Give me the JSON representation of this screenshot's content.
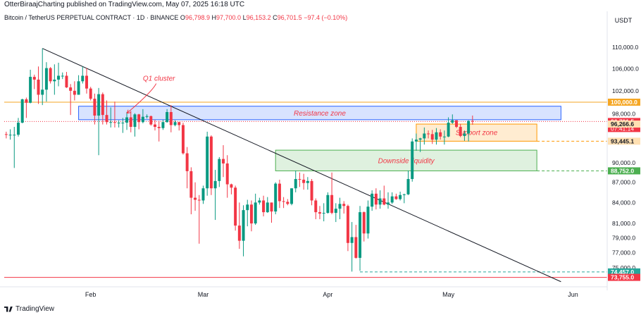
{
  "header": {
    "publisher": "OtterBiraajCharting published on TradingView.com, May 07, 2025 16:18 UTC",
    "symbol": "Bitcoin / TetherUS PERPETUAL CONTRACT · 1D · BINANCE",
    "ohlc": {
      "o_label": "O",
      "o": "96,798.9",
      "h_label": "H",
      "h": "97,700.0",
      "l_label": "L",
      "l": "96,153.2",
      "c_label": "C",
      "c": "96,701.5",
      "change": "−97.4 (−0.10%)"
    }
  },
  "footer": {
    "brand": "TradingView"
  },
  "colors": {
    "up": "#089981",
    "down": "#f23645",
    "resistance_line": "#f5a623",
    "trend_line": "#131722",
    "support_line": "#f23645",
    "green_zone": "#4caf50",
    "blue_zone": "#2962ff",
    "orange_zone": "#ff9800"
  },
  "chart_data": {
    "type": "candlestick",
    "currency_label": "USDT",
    "y_scale": "log",
    "ylim": [
      73000,
      114000
    ],
    "x_start": "2025-01-11",
    "x_end": "2025-06-09",
    "x_ticks": [
      {
        "date": "2025-02-01",
        "label": "Feb"
      },
      {
        "date": "2025-03-01",
        "label": "Mar"
      },
      {
        "date": "2025-04-01",
        "label": "Apr"
      },
      {
        "date": "2025-05-01",
        "label": "May"
      },
      {
        "date": "2025-06-01",
        "label": "Jun"
      }
    ],
    "y_ticks": [
      {
        "value": 110000,
        "label": "110,000.0"
      },
      {
        "value": 106000,
        "label": "106,000.0"
      },
      {
        "value": 102000,
        "label": "102,000.0"
      },
      {
        "value": 98000,
        "label": "98,000.0"
      },
      {
        "value": 90000,
        "label": "90,000.0"
      },
      {
        "value": 87000,
        "label": "87,000.0"
      },
      {
        "value": 84000,
        "label": "84,000.0"
      },
      {
        "value": 81000,
        "label": "81,000.0"
      },
      {
        "value": 79000,
        "label": "79,000.0"
      },
      {
        "value": 77000,
        "label": "77,000.0"
      },
      {
        "value": 75000,
        "label": "75,000.0"
      }
    ],
    "price_badges": [
      {
        "value": 100000,
        "label": "100,000.0",
        "color": "#f5a623"
      },
      {
        "value": 96701.5,
        "label": "96,701.5",
        "countdown": "07:41:14",
        "color": "#f23645"
      },
      {
        "value": 96266.6,
        "label": "96,266.6",
        "color": "#ffe0b2",
        "text_color": "#131722"
      },
      {
        "value": 93445.1,
        "label": "93,445.1",
        "color": "#ffe0b2",
        "text_color": "#131722"
      },
      {
        "value": 88752.0,
        "label": "88,752.0",
        "color": "#4caf50"
      },
      {
        "value": 74457.0,
        "label": "74,457.0",
        "color": "#26a69a"
      },
      {
        "value": 73755.0,
        "label": "73,755.0",
        "color": "#f23645"
      }
    ],
    "horizontal_lines": [
      {
        "value": 100000,
        "color": "#f5a623",
        "style": "solid"
      },
      {
        "value": 73755,
        "color": "#f23645",
        "style": "solid"
      }
    ],
    "zones": [
      {
        "label": "Resistance zone",
        "start": "2025-01-29",
        "end": "2025-05-29",
        "low": 97000,
        "high": 99300,
        "color": "#2962ff"
      },
      {
        "label": "Support zone",
        "start": "2025-04-23",
        "end": "2025-05-23",
        "low": 93445.1,
        "high": 96266.6,
        "color": "#ff9800"
      },
      {
        "label": "Downside liquidity",
        "start": "2025-03-19",
        "end": "2025-05-23",
        "low": 88752,
        "high": 92000,
        "color": "#4caf50"
      }
    ],
    "trendline": {
      "start": {
        "date": "2025-01-20",
        "value": 109800
      },
      "end": {
        "date": "2025-05-29",
        "value": 73200
      }
    },
    "annotations": [
      {
        "text": "Q1 cluster",
        "date": "2025-02-18",
        "value": 103800,
        "arrow_to": {
          "date": "2025-02-10",
          "value": 98100
        }
      }
    ],
    "candles": [
      {
        "d": "2025-01-11",
        "o": 94600,
        "h": 95000,
        "l": 93900,
        "c": 94500
      },
      {
        "d": "2025-01-12",
        "o": 94500,
        "h": 95400,
        "l": 93700,
        "c": 94500
      },
      {
        "d": "2025-01-13",
        "o": 94500,
        "h": 95800,
        "l": 89200,
        "c": 94500
      },
      {
        "d": "2025-01-14",
        "o": 94500,
        "h": 97300,
        "l": 94200,
        "c": 96500
      },
      {
        "d": "2025-01-15",
        "o": 96500,
        "h": 100600,
        "l": 96400,
        "c": 100500
      },
      {
        "d": "2025-01-16",
        "o": 100500,
        "h": 100800,
        "l": 97300,
        "c": 99900
      },
      {
        "d": "2025-01-17",
        "o": 99900,
        "h": 105800,
        "l": 99800,
        "c": 104500
      },
      {
        "d": "2025-01-18",
        "o": 104500,
        "h": 104900,
        "l": 102300,
        "c": 104000
      },
      {
        "d": "2025-01-19",
        "o": 104000,
        "h": 106400,
        "l": 99700,
        "c": 101300
      },
      {
        "d": "2025-01-20",
        "o": 101300,
        "h": 109800,
        "l": 99500,
        "c": 102200
      },
      {
        "d": "2025-01-21",
        "o": 102200,
        "h": 107200,
        "l": 100100,
        "c": 106100
      },
      {
        "d": "2025-01-22",
        "o": 106100,
        "h": 106300,
        "l": 103300,
        "c": 103700
      },
      {
        "d": "2025-01-23",
        "o": 103700,
        "h": 106800,
        "l": 101300,
        "c": 104000
      },
      {
        "d": "2025-01-24",
        "o": 104000,
        "h": 107100,
        "l": 102800,
        "c": 104700
      },
      {
        "d": "2025-01-25",
        "o": 104700,
        "h": 105300,
        "l": 104100,
        "c": 104700
      },
      {
        "d": "2025-01-26",
        "o": 104700,
        "h": 105400,
        "l": 102500,
        "c": 102600
      },
      {
        "d": "2025-01-27",
        "o": 102600,
        "h": 103200,
        "l": 97800,
        "c": 102000
      },
      {
        "d": "2025-01-28",
        "o": 102000,
        "h": 103700,
        "l": 100300,
        "c": 101300
      },
      {
        "d": "2025-01-29",
        "o": 101300,
        "h": 104800,
        "l": 101300,
        "c": 103700
      },
      {
        "d": "2025-01-30",
        "o": 103700,
        "h": 106400,
        "l": 103300,
        "c": 104700
      },
      {
        "d": "2025-01-31",
        "o": 104700,
        "h": 106100,
        "l": 101500,
        "c": 102400
      },
      {
        "d": "2025-02-01",
        "o": 102400,
        "h": 102700,
        "l": 100300,
        "c": 100600
      },
      {
        "d": "2025-02-02",
        "o": 100600,
        "h": 101500,
        "l": 96200,
        "c": 97700
      },
      {
        "d": "2025-02-03",
        "o": 97700,
        "h": 102500,
        "l": 91200,
        "c": 101400
      },
      {
        "d": "2025-02-04",
        "o": 101400,
        "h": 101700,
        "l": 96200,
        "c": 97800
      },
      {
        "d": "2025-02-05",
        "o": 97800,
        "h": 100300,
        "l": 96200,
        "c": 96600
      },
      {
        "d": "2025-02-06",
        "o": 96600,
        "h": 99100,
        "l": 95700,
        "c": 96600
      },
      {
        "d": "2025-02-07",
        "o": 96600,
        "h": 100100,
        "l": 95700,
        "c": 96500
      },
      {
        "d": "2025-02-08",
        "o": 96500,
        "h": 96900,
        "l": 95700,
        "c": 96500
      },
      {
        "d": "2025-02-09",
        "o": 96500,
        "h": 97300,
        "l": 94800,
        "c": 96500
      },
      {
        "d": "2025-02-10",
        "o": 96500,
        "h": 98300,
        "l": 95300,
        "c": 97400
      },
      {
        "d": "2025-02-11",
        "o": 97400,
        "h": 98500,
        "l": 94900,
        "c": 95800
      },
      {
        "d": "2025-02-12",
        "o": 95800,
        "h": 98100,
        "l": 94200,
        "c": 97900
      },
      {
        "d": "2025-02-13",
        "o": 97900,
        "h": 98000,
        "l": 95400,
        "c": 96600
      },
      {
        "d": "2025-02-14",
        "o": 96600,
        "h": 98800,
        "l": 96400,
        "c": 97500
      },
      {
        "d": "2025-02-15",
        "o": 97500,
        "h": 97900,
        "l": 97200,
        "c": 97600
      },
      {
        "d": "2025-02-16",
        "o": 97600,
        "h": 97700,
        "l": 96000,
        "c": 96200
      },
      {
        "d": "2025-02-17",
        "o": 96200,
        "h": 97000,
        "l": 95200,
        "c": 95800
      },
      {
        "d": "2025-02-18",
        "o": 95800,
        "h": 96800,
        "l": 93400,
        "c": 95600
      },
      {
        "d": "2025-02-19",
        "o": 95600,
        "h": 97000,
        "l": 95300,
        "c": 96600
      },
      {
        "d": "2025-02-20",
        "o": 96600,
        "h": 98800,
        "l": 96500,
        "c": 98300
      },
      {
        "d": "2025-02-21",
        "o": 98300,
        "h": 99500,
        "l": 94900,
        "c": 96100
      },
      {
        "d": "2025-02-22",
        "o": 96100,
        "h": 96900,
        "l": 95900,
        "c": 96600
      },
      {
        "d": "2025-02-23",
        "o": 96600,
        "h": 96600,
        "l": 95200,
        "c": 96100
      },
      {
        "d": "2025-02-24",
        "o": 96100,
        "h": 96500,
        "l": 91300,
        "c": 91500
      },
      {
        "d": "2025-02-25",
        "o": 91500,
        "h": 92500,
        "l": 86100,
        "c": 88700
      },
      {
        "d": "2025-02-26",
        "o": 88700,
        "h": 89300,
        "l": 82300,
        "c": 84700
      },
      {
        "d": "2025-02-27",
        "o": 84700,
        "h": 87000,
        "l": 82800,
        "c": 84400
      },
      {
        "d": "2025-02-28",
        "o": 84400,
        "h": 85100,
        "l": 78200,
        "c": 84300
      },
      {
        "d": "2025-03-01",
        "o": 84300,
        "h": 86500,
        "l": 83800,
        "c": 86100
      },
      {
        "d": "2025-03-02",
        "o": 86100,
        "h": 95000,
        "l": 85000,
        "c": 94200
      },
      {
        "d": "2025-03-03",
        "o": 94200,
        "h": 94400,
        "l": 85100,
        "c": 86100
      },
      {
        "d": "2025-03-04",
        "o": 86100,
        "h": 88900,
        "l": 81500,
        "c": 87200
      },
      {
        "d": "2025-03-05",
        "o": 87200,
        "h": 90900,
        "l": 86300,
        "c": 90600
      },
      {
        "d": "2025-03-06",
        "o": 90600,
        "h": 92800,
        "l": 87800,
        "c": 89900
      },
      {
        "d": "2025-03-07",
        "o": 89900,
        "h": 91200,
        "l": 84700,
        "c": 86700
      },
      {
        "d": "2025-03-08",
        "o": 86700,
        "h": 86800,
        "l": 85200,
        "c": 86200
      },
      {
        "d": "2025-03-09",
        "o": 86200,
        "h": 86500,
        "l": 80000,
        "c": 80700
      },
      {
        "d": "2025-03-10",
        "o": 80700,
        "h": 84000,
        "l": 77500,
        "c": 78600
      },
      {
        "d": "2025-03-11",
        "o": 78600,
        "h": 83600,
        "l": 76500,
        "c": 82900
      },
      {
        "d": "2025-03-12",
        "o": 82900,
        "h": 84400,
        "l": 80600,
        "c": 83700
      },
      {
        "d": "2025-03-13",
        "o": 83700,
        "h": 84300,
        "l": 79900,
        "c": 81000
      },
      {
        "d": "2025-03-14",
        "o": 81000,
        "h": 85300,
        "l": 80800,
        "c": 84000
      },
      {
        "d": "2025-03-15",
        "o": 84000,
        "h": 84700,
        "l": 83700,
        "c": 84300
      },
      {
        "d": "2025-03-16",
        "o": 84300,
        "h": 85000,
        "l": 82000,
        "c": 82600
      },
      {
        "d": "2025-03-17",
        "o": 82600,
        "h": 84800,
        "l": 82500,
        "c": 84000
      },
      {
        "d": "2025-03-18",
        "o": 84000,
        "h": 84000,
        "l": 81100,
        "c": 82700
      },
      {
        "d": "2025-03-19",
        "o": 82700,
        "h": 87000,
        "l": 82300,
        "c": 86800
      },
      {
        "d": "2025-03-20",
        "o": 86800,
        "h": 87400,
        "l": 83200,
        "c": 84200
      },
      {
        "d": "2025-03-21",
        "o": 84200,
        "h": 84800,
        "l": 83200,
        "c": 84100
      },
      {
        "d": "2025-03-22",
        "o": 84100,
        "h": 84500,
        "l": 83600,
        "c": 83800
      },
      {
        "d": "2025-03-23",
        "o": 83800,
        "h": 86100,
        "l": 83600,
        "c": 86100
      },
      {
        "d": "2025-03-24",
        "o": 86100,
        "h": 88800,
        "l": 85500,
        "c": 87500
      },
      {
        "d": "2025-03-25",
        "o": 87500,
        "h": 88500,
        "l": 86300,
        "c": 87400
      },
      {
        "d": "2025-03-26",
        "o": 87400,
        "h": 88300,
        "l": 85900,
        "c": 86900
      },
      {
        "d": "2025-03-27",
        "o": 86900,
        "h": 87800,
        "l": 85900,
        "c": 87200
      },
      {
        "d": "2025-03-28",
        "o": 87200,
        "h": 87500,
        "l": 83600,
        "c": 84300
      },
      {
        "d": "2025-03-29",
        "o": 84300,
        "h": 84600,
        "l": 81600,
        "c": 82600
      },
      {
        "d": "2025-03-30",
        "o": 82600,
        "h": 83500,
        "l": 81600,
        "c": 82400
      },
      {
        "d": "2025-03-31",
        "o": 82400,
        "h": 83900,
        "l": 81300,
        "c": 82500
      },
      {
        "d": "2025-04-01",
        "o": 82500,
        "h": 85500,
        "l": 82400,
        "c": 85100
      },
      {
        "d": "2025-04-02",
        "o": 85100,
        "h": 88500,
        "l": 82300,
        "c": 82500
      },
      {
        "d": "2025-04-03",
        "o": 82500,
        "h": 83900,
        "l": 81200,
        "c": 83100
      },
      {
        "d": "2025-04-04",
        "o": 83100,
        "h": 84700,
        "l": 81600,
        "c": 83800
      },
      {
        "d": "2025-04-05",
        "o": 83800,
        "h": 84200,
        "l": 82400,
        "c": 83500
      },
      {
        "d": "2025-04-06",
        "o": 83500,
        "h": 83700,
        "l": 77200,
        "c": 78300
      },
      {
        "d": "2025-04-07",
        "o": 78300,
        "h": 81200,
        "l": 74500,
        "c": 79100
      },
      {
        "d": "2025-04-08",
        "o": 79100,
        "h": 80800,
        "l": 76200,
        "c": 76300
      },
      {
        "d": "2025-04-09",
        "o": 76300,
        "h": 83500,
        "l": 74600,
        "c": 82600
      },
      {
        "d": "2025-04-10",
        "o": 82600,
        "h": 82700,
        "l": 78500,
        "c": 79600
      },
      {
        "d": "2025-04-11",
        "o": 79600,
        "h": 84300,
        "l": 78900,
        "c": 83400
      },
      {
        "d": "2025-04-12",
        "o": 83400,
        "h": 85800,
        "l": 82800,
        "c": 85300
      },
      {
        "d": "2025-04-13",
        "o": 85300,
        "h": 86100,
        "l": 83000,
        "c": 83700
      },
      {
        "d": "2025-04-14",
        "o": 83700,
        "h": 85800,
        "l": 83100,
        "c": 84600
      },
      {
        "d": "2025-04-15",
        "o": 84600,
        "h": 86500,
        "l": 83600,
        "c": 83700
      },
      {
        "d": "2025-04-16",
        "o": 83700,
        "h": 85500,
        "l": 83100,
        "c": 84000
      },
      {
        "d": "2025-04-17",
        "o": 84000,
        "h": 85500,
        "l": 83800,
        "c": 84900
      },
      {
        "d": "2025-04-18",
        "o": 84900,
        "h": 85300,
        "l": 84400,
        "c": 84500
      },
      {
        "d": "2025-04-19",
        "o": 84500,
        "h": 85600,
        "l": 84300,
        "c": 85100
      },
      {
        "d": "2025-04-20",
        "o": 85100,
        "h": 85300,
        "l": 83900,
        "c": 85200
      },
      {
        "d": "2025-04-21",
        "o": 85200,
        "h": 88800,
        "l": 85100,
        "c": 87500
      },
      {
        "d": "2025-04-22",
        "o": 87500,
        "h": 93900,
        "l": 87100,
        "c": 93400
      },
      {
        "d": "2025-04-23",
        "o": 93400,
        "h": 94700,
        "l": 91900,
        "c": 93700
      },
      {
        "d": "2025-04-24",
        "o": 93700,
        "h": 94000,
        "l": 91700,
        "c": 93900
      },
      {
        "d": "2025-04-25",
        "o": 93900,
        "h": 95700,
        "l": 92900,
        "c": 94700
      },
      {
        "d": "2025-04-26",
        "o": 94700,
        "h": 95200,
        "l": 93900,
        "c": 94600
      },
      {
        "d": "2025-04-27",
        "o": 94600,
        "h": 95300,
        "l": 93000,
        "c": 93700
      },
      {
        "d": "2025-04-28",
        "o": 93700,
        "h": 95600,
        "l": 92900,
        "c": 94900
      },
      {
        "d": "2025-04-29",
        "o": 94900,
        "h": 95400,
        "l": 93700,
        "c": 94200
      },
      {
        "d": "2025-04-30",
        "o": 94200,
        "h": 95200,
        "l": 92900,
        "c": 94200
      },
      {
        "d": "2025-05-01",
        "o": 94200,
        "h": 97400,
        "l": 94100,
        "c": 96500
      },
      {
        "d": "2025-05-02",
        "o": 96500,
        "h": 97900,
        "l": 96300,
        "c": 96900
      },
      {
        "d": "2025-05-03",
        "o": 96900,
        "h": 96900,
        "l": 95600,
        "c": 95800
      },
      {
        "d": "2025-05-04",
        "o": 95800,
        "h": 96300,
        "l": 94100,
        "c": 94300
      },
      {
        "d": "2025-05-05",
        "o": 94300,
        "h": 95200,
        "l": 93500,
        "c": 94700
      },
      {
        "d": "2025-05-06",
        "o": 94700,
        "h": 96900,
        "l": 93400,
        "c": 96800
      },
      {
        "d": "2025-05-07",
        "o": 96798.9,
        "h": 97700,
        "l": 96153.2,
        "c": 96701.5
      }
    ]
  }
}
